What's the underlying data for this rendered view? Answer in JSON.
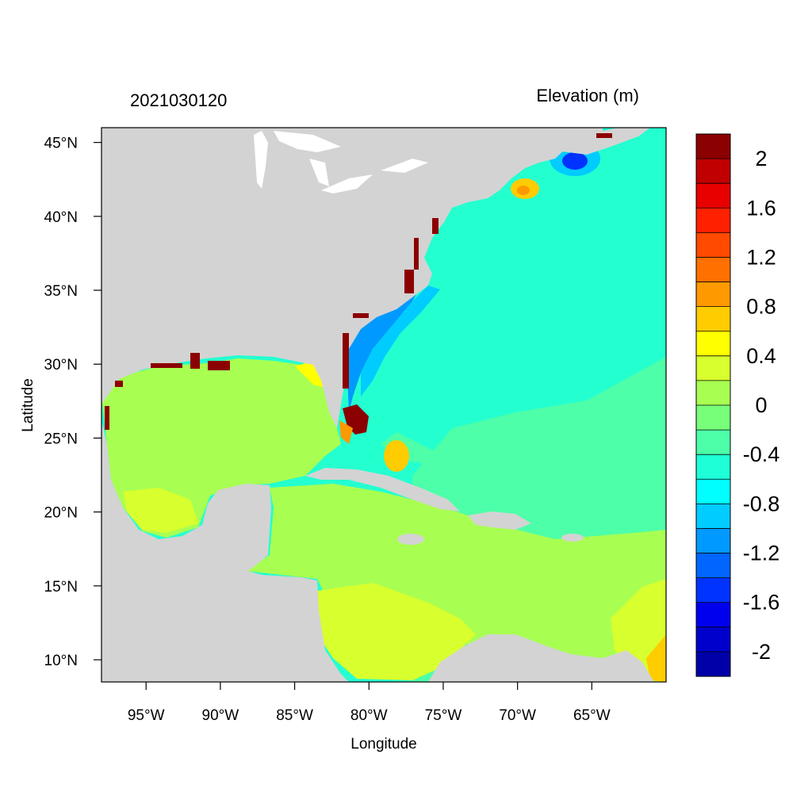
{
  "title_left": "2021030120",
  "title_right": "Elevation (m)",
  "xlabel": "Longitude",
  "ylabel": "Latitude",
  "map": {
    "lon_range": [
      -98,
      -60
    ],
    "lat_range": [
      8.5,
      46
    ],
    "lon_ticks": [
      "95°W",
      "90°W",
      "85°W",
      "80°W",
      "75°W",
      "70°W",
      "65°W"
    ],
    "lon_values": [
      -95,
      -90,
      -85,
      -80,
      -75,
      -70,
      -65
    ],
    "lat_ticks": [
      "45°N",
      "40°N",
      "35°N",
      "30°N",
      "25°N",
      "20°N",
      "15°N",
      "10°N"
    ],
    "lat_values": [
      45,
      40,
      35,
      30,
      25,
      20,
      15,
      10
    ],
    "land_color": "#d3d3d3"
  },
  "colorbar": {
    "labels": [
      "2",
      "1.6",
      "1.2",
      "0.8",
      "0.4",
      "0",
      "-0.4",
      "-0.8",
      "-1.2",
      "-1.6",
      "-2"
    ],
    "colors_top_to_bottom": [
      "#8b0000",
      "#c00000",
      "#e80000",
      "#ff2000",
      "#ff4a00",
      "#ff7000",
      "#ff9900",
      "#ffcc00",
      "#ffff00",
      "#d8ff2e",
      "#a8ff52",
      "#78ff7a",
      "#4dffa8",
      "#1effd8",
      "#00ffff",
      "#00ccff",
      "#0099ff",
      "#0066ff",
      "#0033ff",
      "#0000ee",
      "#0000cc",
      "#0000a8"
    ]
  }
}
